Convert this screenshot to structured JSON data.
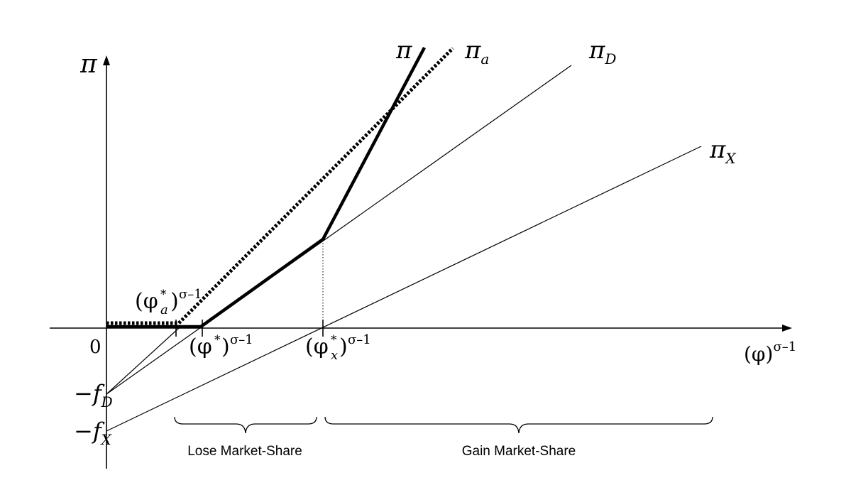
{
  "labels": {
    "y_axis": "π",
    "x_axis_base": "(φ)",
    "x_axis_exp": "σ–1",
    "origin": "0",
    "neg_fD_minus": "−",
    "neg_fD_f": "f",
    "neg_fD_sub": "D",
    "neg_fX_minus": "−",
    "neg_fX_f": "f",
    "neg_fX_sub": "X",
    "pi": "π",
    "pi_a_base": "π",
    "pi_a_sub": "a",
    "pi_D_base": "π",
    "pi_D_sub": "D",
    "pi_X_base": "π",
    "pi_X_sub": "X",
    "phi_a_open": "(φ",
    "phi_a_star": "*",
    "phi_a_sub": "a",
    "phi_a_close": ")",
    "phi_a_exp": "σ–1",
    "phi_star_open": "(φ",
    "phi_star_star": "*",
    "phi_star_close": ")",
    "phi_star_exp": "σ–1",
    "phi_x_open": "(φ",
    "phi_x_star": "*",
    "phi_x_sub": "x",
    "phi_x_close": ")",
    "phi_x_exp": "σ–1"
  },
  "regions": {
    "lose": "Lose Market-Share",
    "gain": "Gain Market-Share"
  }
}
